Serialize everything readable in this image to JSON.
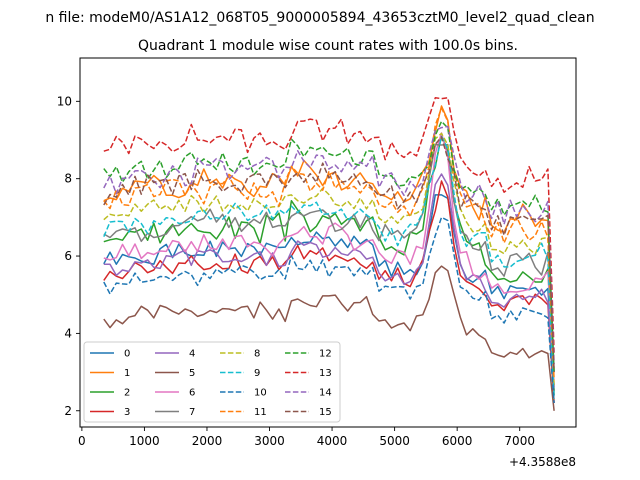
{
  "figure": {
    "suptitle": "n file: modeM0/AS1A12_068T05_9000005894_43653cztM0_level2_quad_clean"
  },
  "chart_data": {
    "type": "line",
    "title": "Quadrant 1 module wise count rates with 100.0s bins.",
    "xlabel": "",
    "ylabel": "",
    "x_offset_label": "+4.3588e8",
    "xlim": [
      -30,
      7900
    ],
    "ylim": [
      1.58,
      11.12
    ],
    "xticks": [
      0,
      1000,
      2000,
      3000,
      4000,
      5000,
      6000,
      7000
    ],
    "yticks": [
      2,
      4,
      6,
      8,
      10
    ],
    "grid": false,
    "legend_position": "lower-left",
    "legend_columns": 4,
    "x": [
      350,
      450,
      550,
      650,
      750,
      850,
      950,
      1050,
      1150,
      1250,
      1350,
      1450,
      1550,
      1650,
      1750,
      1850,
      1950,
      2050,
      2150,
      2250,
      2350,
      2450,
      2550,
      2650,
      2750,
      2850,
      2950,
      3050,
      3150,
      3250,
      3350,
      3450,
      3550,
      3650,
      3750,
      3850,
      3950,
      4050,
      4150,
      4250,
      4350,
      4450,
      4550,
      4650,
      4750,
      4850,
      4950,
      5050,
      5150,
      5250,
      5350,
      5450,
      5550,
      5650,
      5750,
      5850,
      5950,
      6050,
      6150,
      6250,
      6350,
      6450,
      6550,
      6650,
      6750,
      6850,
      6950,
      7050,
      7150,
      7250,
      7350,
      7450,
      7550
    ],
    "series": [
      {
        "name": "0",
        "color": "#1f77b4",
        "style": "solid",
        "base": 5.8,
        "peak": 2.2,
        "noise": 0.22,
        "seed": 1,
        "end": 2.5
      },
      {
        "name": "1",
        "color": "#ff7f0e",
        "style": "solid",
        "base": 7.6,
        "peak": 2.6,
        "noise": 0.3,
        "seed": 2,
        "end": 2.6
      },
      {
        "name": "2",
        "color": "#2ca02c",
        "style": "solid",
        "base": 6.4,
        "peak": 2.9,
        "noise": 0.3,
        "seed": 3,
        "end": 2.4
      },
      {
        "name": "3",
        "color": "#d62728",
        "style": "solid",
        "base": 5.5,
        "peak": 2.5,
        "noise": 0.22,
        "seed": 4,
        "end": 2.2
      },
      {
        "name": "4",
        "color": "#9467bd",
        "style": "solid",
        "base": 5.6,
        "peak": 2.9,
        "noise": 0.22,
        "seed": 5,
        "end": 2.6
      },
      {
        "name": "5",
        "color": "#8c564b",
        "style": "solid",
        "base": 4.3,
        "peak": 1.7,
        "noise": 0.2,
        "seed": 6,
        "end": 2.0
      },
      {
        "name": "6",
        "color": "#e377c2",
        "style": "solid",
        "base": 6.0,
        "peak": 3.3,
        "noise": 0.25,
        "seed": 7,
        "end": 2.6
      },
      {
        "name": "7",
        "color": "#7f7f7f",
        "style": "solid",
        "base": 6.5,
        "peak": 2.9,
        "noise": 0.3,
        "seed": 8,
        "end": 3.0
      },
      {
        "name": "8",
        "color": "#bcbd22",
        "style": "dashed",
        "base": 7.0,
        "peak": 2.5,
        "noise": 0.22,
        "seed": 9,
        "end": 2.6
      },
      {
        "name": "9",
        "color": "#17becf",
        "style": "dashed",
        "base": 6.7,
        "peak": 2.6,
        "noise": 0.25,
        "seed": 10,
        "end": 2.3
      },
      {
        "name": "10",
        "color": "#1f77b4",
        "style": "dashed",
        "base": 5.2,
        "peak": 2.1,
        "noise": 0.2,
        "seed": 11,
        "end": 2.2
      },
      {
        "name": "11",
        "color": "#ff7f0e",
        "style": "dashed",
        "base": 7.4,
        "peak": 2.6,
        "noise": 0.3,
        "seed": 12,
        "end": 2.8
      },
      {
        "name": "12",
        "color": "#2ca02c",
        "style": "dashed",
        "base": 8.1,
        "peak": 1.4,
        "noise": 0.28,
        "seed": 13,
        "end": 3.0
      },
      {
        "name": "13",
        "color": "#d62728",
        "style": "dashed",
        "base": 8.7,
        "peak": 1.8,
        "noise": 0.28,
        "seed": 14,
        "end": 3.5
      },
      {
        "name": "14",
        "color": "#9467bd",
        "style": "dashed",
        "base": 7.9,
        "peak": 1.7,
        "noise": 0.3,
        "seed": 15,
        "end": 3.2
      },
      {
        "name": "15",
        "color": "#8c564b",
        "style": "dashed",
        "base": 7.6,
        "peak": 1.6,
        "noise": 0.28,
        "seed": 16,
        "end": 3.0
      }
    ]
  }
}
